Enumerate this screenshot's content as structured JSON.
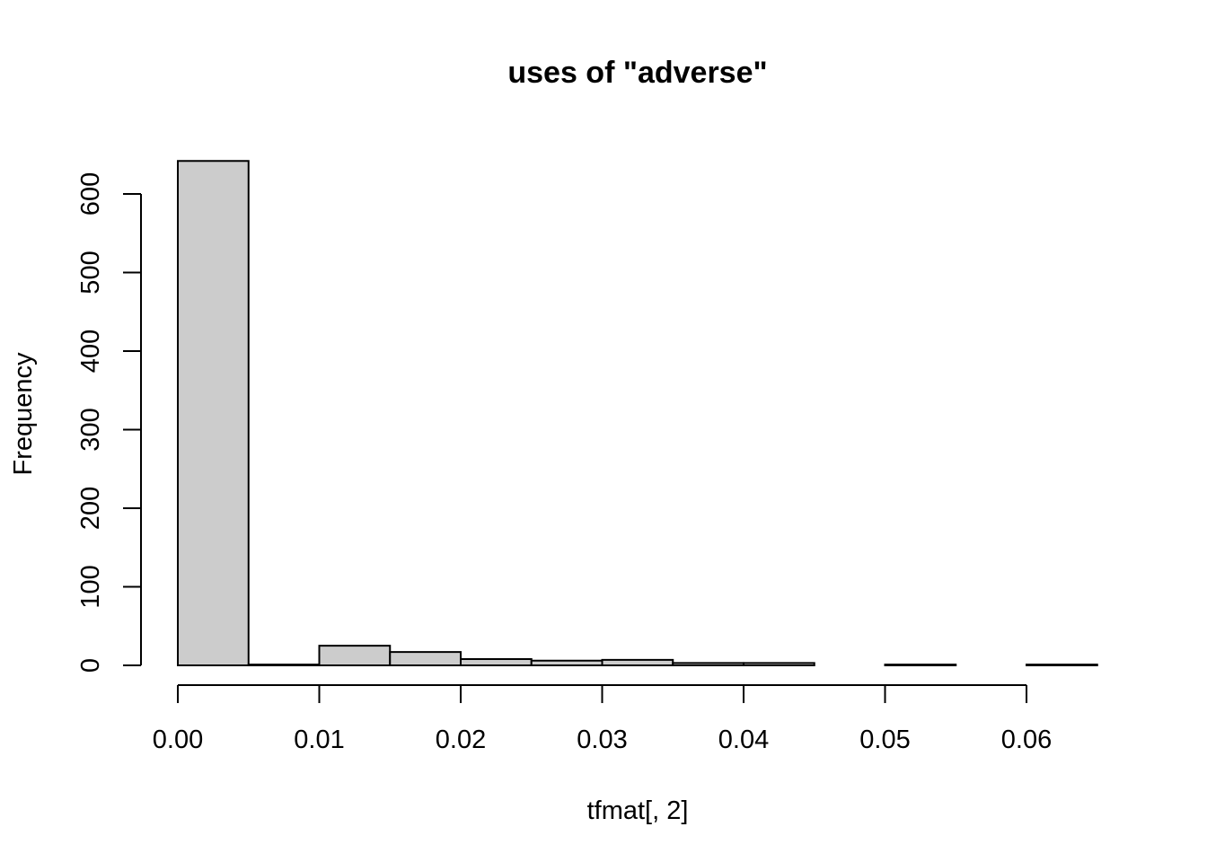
{
  "chart_data": {
    "type": "bar",
    "title": "uses of \"adverse\"",
    "xlabel": "tfmat[, 2]",
    "ylabel": "Frequency",
    "bin_width": 0.005,
    "bins": [
      {
        "start": 0.0,
        "end": 0.005,
        "count": 642
      },
      {
        "start": 0.005,
        "end": 0.01,
        "count": 1
      },
      {
        "start": 0.01,
        "end": 0.015,
        "count": 25
      },
      {
        "start": 0.015,
        "end": 0.02,
        "count": 17
      },
      {
        "start": 0.02,
        "end": 0.025,
        "count": 8
      },
      {
        "start": 0.025,
        "end": 0.03,
        "count": 6
      },
      {
        "start": 0.03,
        "end": 0.035,
        "count": 7
      },
      {
        "start": 0.035,
        "end": 0.04,
        "count": 3
      },
      {
        "start": 0.04,
        "end": 0.045,
        "count": 3
      },
      {
        "start": 0.045,
        "end": 0.05,
        "count": 0
      },
      {
        "start": 0.05,
        "end": 0.055,
        "count": 1
      },
      {
        "start": 0.055,
        "end": 0.06,
        "count": 0
      },
      {
        "start": 0.06,
        "end": 0.065,
        "count": 1
      }
    ],
    "xlim": [
      0,
      0.065
    ],
    "ylim": [
      0,
      642
    ],
    "x_ticks": [
      0.0,
      0.01,
      0.02,
      0.03,
      0.04,
      0.05,
      0.06
    ],
    "x_tick_labels": [
      "0.00",
      "0.01",
      "0.02",
      "0.03",
      "0.04",
      "0.05",
      "0.06"
    ],
    "y_ticks": [
      0,
      100,
      200,
      300,
      400,
      500,
      600
    ],
    "y_tick_labels": [
      "0",
      "100",
      "200",
      "300",
      "400",
      "500",
      "600"
    ],
    "grid": false,
    "colors": {
      "bar_fill": "#cccccc",
      "bar_stroke": "#000000"
    }
  }
}
